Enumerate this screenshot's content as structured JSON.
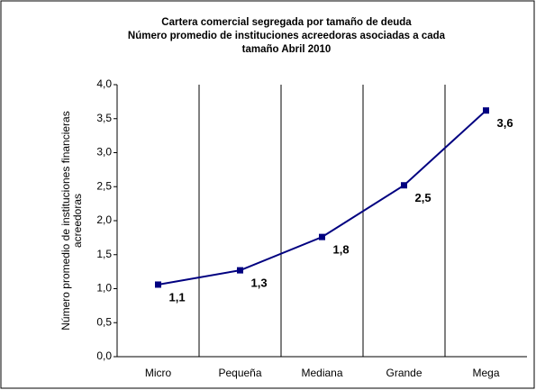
{
  "chart_data": {
    "type": "line",
    "title": [
      "Cartera comercial segregada por tamaño de deuda",
      "Número promedio de instituciones acreedoras asociadas a cada",
      "tamaño Abril 2010"
    ],
    "y_label": [
      "Número promedio de instituciones financieras",
      "acreedoras"
    ],
    "categories": [
      "Micro",
      "Pequeña",
      "Mediana",
      "Grande",
      "Mega"
    ],
    "series": [
      {
        "name": "Número promedio",
        "color": "#000080",
        "values": [
          1.06,
          1.27,
          1.76,
          2.52,
          3.62
        ],
        "value_labels": [
          "1,1",
          "1,3",
          "1,8",
          "2,5",
          "3,6"
        ]
      }
    ],
    "ylim": [
      0,
      4
    ],
    "yticks": [
      {
        "value": 0,
        "label": "0,0"
      },
      {
        "value": 0.5,
        "label": "0,5"
      },
      {
        "value": 1,
        "label": "1,0"
      },
      {
        "value": 1.5,
        "label": "1,5"
      },
      {
        "value": 2,
        "label": "2,0"
      },
      {
        "value": 2.5,
        "label": "2,5"
      },
      {
        "value": 3,
        "label": "3,0"
      },
      {
        "value": 3.5,
        "label": "3,5"
      },
      {
        "value": 4,
        "label": "4,0"
      }
    ]
  }
}
